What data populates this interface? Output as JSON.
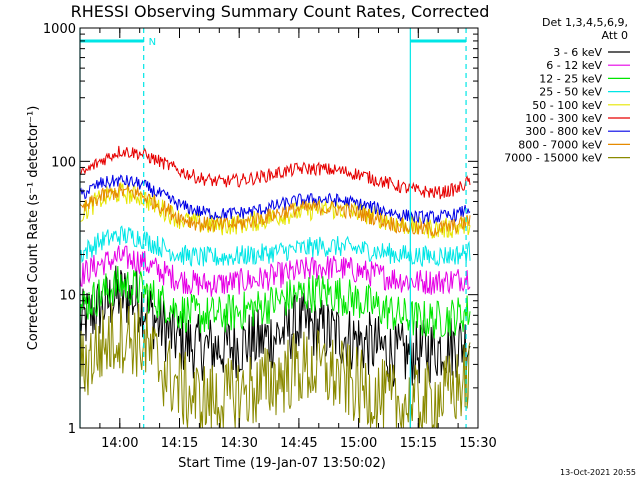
{
  "chart_data": {
    "type": "line",
    "title": "RHESSI Observing Summary Count Rates, Corrected",
    "xlabel": "Start Time (19-Jan-07 13:50:02)",
    "ylabel": "Corrected Count Rate (s⁻¹ detector⁻¹)",
    "y_scale": "log",
    "ylim": [
      1,
      1000
    ],
    "y_ticks": [
      {
        "value": 1,
        "label": "1"
      },
      {
        "value": 10,
        "label": "10"
      },
      {
        "value": 100,
        "label": "100"
      },
      {
        "value": 1000,
        "label": "1000"
      }
    ],
    "xlim": [
      "13:50",
      "15:30"
    ],
    "x_ticks": [
      {
        "value": "14:00",
        "label": "14:00"
      },
      {
        "value": "14:15",
        "label": "14:15"
      },
      {
        "value": "14:30",
        "label": "14:30"
      },
      {
        "value": "14:45",
        "label": "14:45"
      },
      {
        "value": "15:00",
        "label": "15:00"
      },
      {
        "value": "15:15",
        "label": "15:15"
      },
      {
        "value": "15:30",
        "label": "15:30"
      }
    ],
    "legend_header": [
      "Det 1,3,4,5,6,9,",
      "Att 0"
    ],
    "legend_position": "right",
    "timestamp": "13-Oct-2021 20:55",
    "markers": {
      "night_label": "N",
      "cyan_solid_lines": [
        "13:50",
        "15:13"
      ],
      "cyan_dashed_lines": [
        "14:06",
        "15:27"
      ],
      "night_bars": [
        [
          "13:50",
          "14:06"
        ],
        [
          "15:13",
          "15:27"
        ]
      ]
    },
    "x": [
      "13:50",
      "13:55",
      "14:00",
      "14:05",
      "14:10",
      "14:15",
      "14:20",
      "14:25",
      "14:30",
      "14:35",
      "14:40",
      "14:45",
      "14:50",
      "14:55",
      "15:00",
      "15:05",
      "15:10",
      "15:15",
      "15:20",
      "15:25",
      "15:28"
    ],
    "series": [
      {
        "name": "3 - 6 keV",
        "color": "#000000",
        "noise": 0.25,
        "values": [
          6,
          8,
          10,
          9,
          6,
          4.5,
          4,
          4,
          4.2,
          4.5,
          5,
          6,
          5.5,
          5,
          4.5,
          4,
          3.5,
          3.6,
          4,
          4.2,
          4.5
        ]
      },
      {
        "name": "6 - 12 keV",
        "color": "#e600e6",
        "noise": 0.1,
        "values": [
          14,
          17,
          19,
          18,
          15,
          13,
          12,
          12,
          12.5,
          13,
          14,
          15,
          16,
          16,
          15,
          14,
          13,
          12.5,
          12.5,
          13,
          14
        ]
      },
      {
        "name": "12 - 25 keV",
        "color": "#00e600",
        "noise": 0.15,
        "values": [
          8,
          10,
          12,
          11,
          9,
          7.5,
          7,
          7,
          7.5,
          8,
          9,
          10,
          10.5,
          10,
          9,
          8,
          7,
          6.5,
          6.5,
          7,
          7.5
        ]
      },
      {
        "name": "25 - 50 keV",
        "color": "#00e6e6",
        "noise": 0.08,
        "values": [
          20,
          25,
          28,
          27,
          23,
          20,
          19,
          19,
          19.5,
          20,
          21,
          22,
          23,
          23,
          22,
          21,
          20,
          19.5,
          19.5,
          20,
          21
        ]
      },
      {
        "name": "50 - 100 keV",
        "color": "#e6e600",
        "noise": 0.08,
        "values": [
          40,
          52,
          58,
          55,
          45,
          37,
          34,
          33,
          34,
          36,
          39,
          42,
          44,
          44,
          42,
          38,
          34,
          32,
          31,
          32,
          34
        ]
      },
      {
        "name": "100 - 300 keV",
        "color": "#e60000",
        "noise": 0.05,
        "values": [
          78,
          100,
          120,
          115,
          100,
          85,
          75,
          70,
          72,
          76,
          82,
          88,
          88,
          85,
          80,
          72,
          65,
          60,
          58,
          62,
          72
        ]
      },
      {
        "name": "300 - 800 keV",
        "color": "#0000e6",
        "noise": 0.05,
        "values": [
          55,
          68,
          72,
          68,
          57,
          47,
          42,
          40,
          41,
          43,
          47,
          51,
          52,
          51,
          48,
          44,
          40,
          38,
          38,
          40,
          45
        ]
      },
      {
        "name": "800 - 7000 keV",
        "color": "#e68a00",
        "noise": 0.06,
        "values": [
          42,
          54,
          60,
          57,
          47,
          38,
          34,
          33,
          34,
          37,
          41,
          44,
          45,
          44,
          41,
          37,
          33,
          31,
          31,
          33,
          36
        ]
      },
      {
        "name": "7000 - 15000 keV",
        "color": "#8a8a00",
        "noise": 0.3,
        "values": [
          2.8,
          4,
          5.2,
          4.5,
          3,
          2,
          1.6,
          1.6,
          1.8,
          2,
          2.4,
          2.8,
          2.8,
          2.4,
          2,
          1.7,
          1.5,
          1.5,
          1.7,
          2,
          2.5
        ]
      }
    ]
  }
}
